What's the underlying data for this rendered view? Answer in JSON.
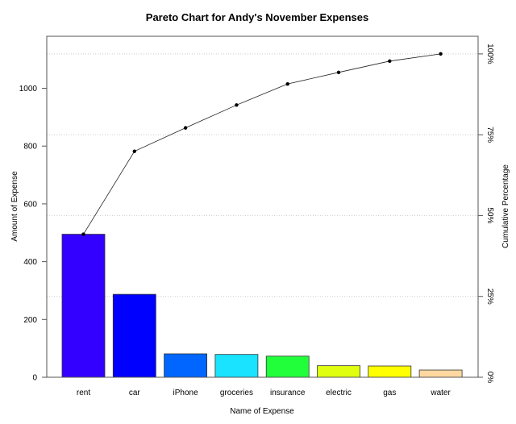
{
  "chart_data": {
    "type": "bar",
    "title": "Pareto Chart for Andy's November Expenses",
    "xlabel": "Name of Expense",
    "ylabel": "Amount of Expense",
    "ylabel_right": "Cumulative Percentage",
    "categories": [
      "rent",
      "car",
      "iPhone",
      "groceries",
      "insurance",
      "electric",
      "gas",
      "water"
    ],
    "values": [
      495,
      287,
      81,
      79,
      73,
      40,
      39,
      25
    ],
    "colors": [
      "#3300FF",
      "#0000FF",
      "#0066FF",
      "#19E3FF",
      "#20FF3A",
      "#E0FF10",
      "#FFFF00",
      "#FFD8A0"
    ],
    "cumulative_line": true,
    "ylim": [
      0,
      1180
    ],
    "yticks": [
      0,
      200,
      400,
      600,
      800,
      1000
    ],
    "right_ticks": [
      "0%",
      "25%",
      "50%",
      "75%",
      "100%"
    ],
    "grid": "horizontal dotted at cumulative percent ticks",
    "legend": "none"
  }
}
